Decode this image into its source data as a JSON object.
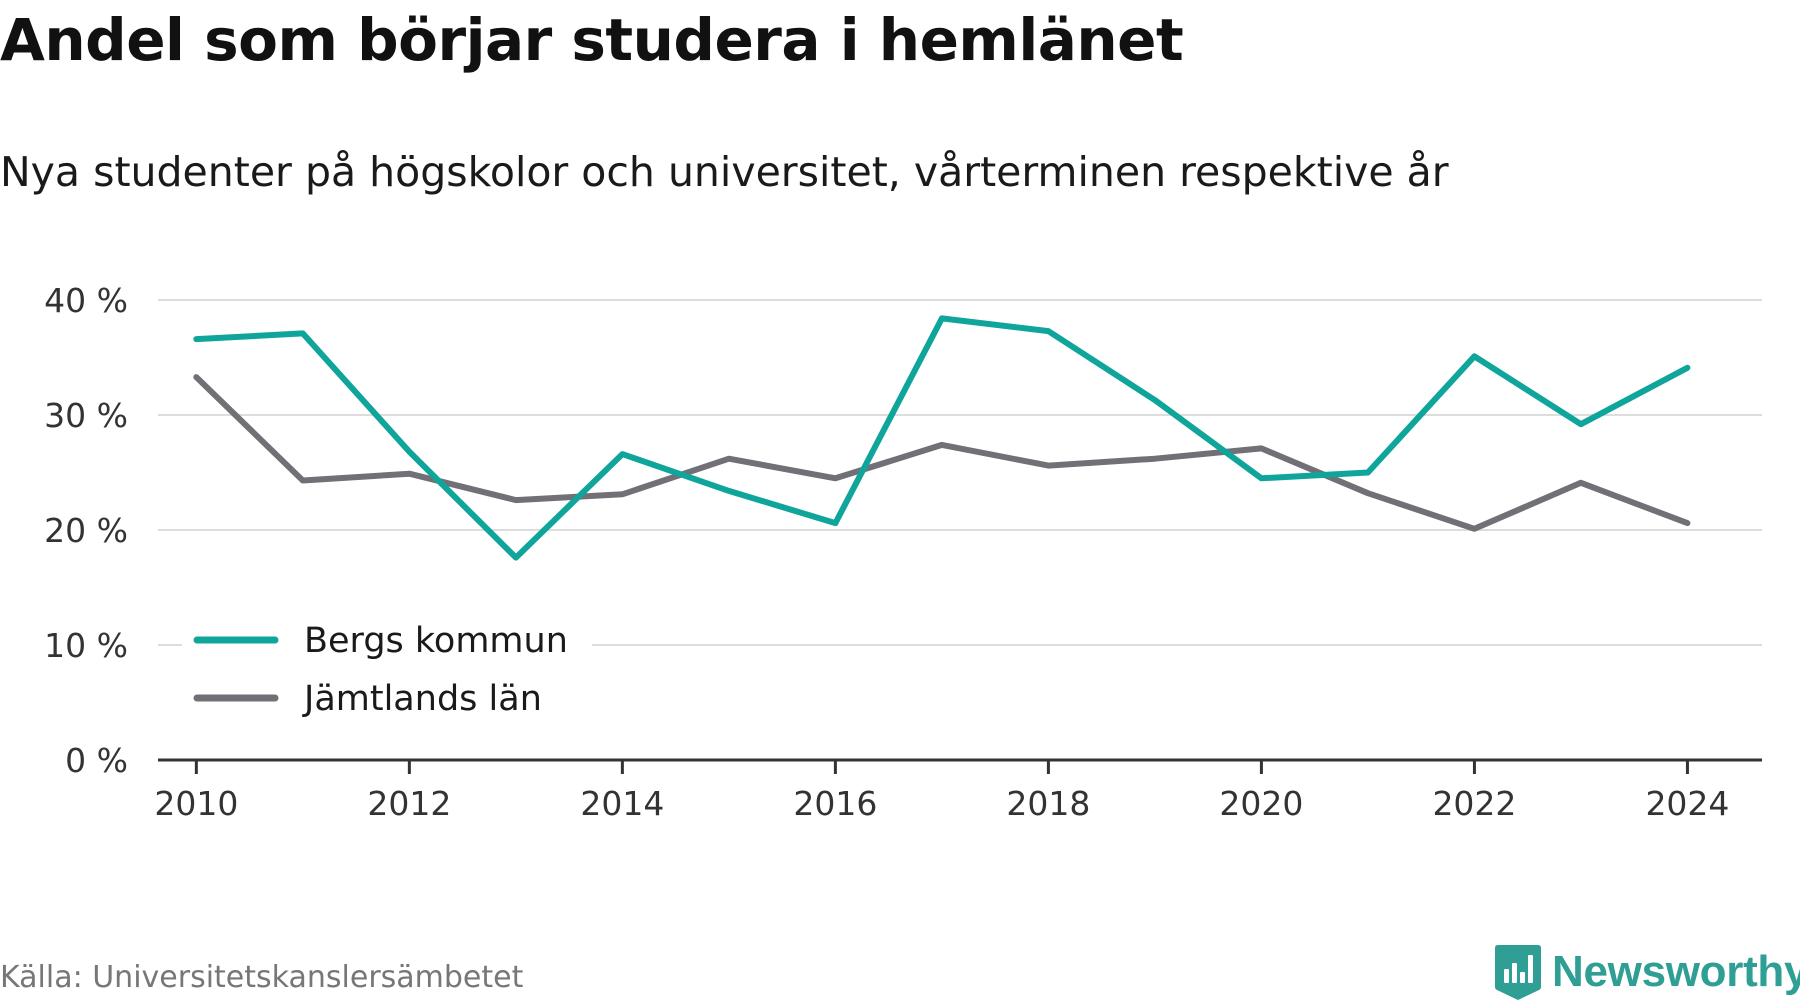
{
  "title": "Andel som börjar studera i hemlänet",
  "subtitle": "Nya studenter på högskolor och universitet, vårterminen respektive år",
  "source": "Källa: Universitetskanslersämbetet",
  "brand": "Newsworthy",
  "colors": {
    "bergs": "#10a59b",
    "jamtland": "#727076",
    "grid": "#dddddd",
    "axis": "#333333",
    "brand": "#2f9e94"
  },
  "chart_data": {
    "type": "line",
    "title": "Andel som börjar studera i hemlänet",
    "subtitle": "Nya studenter på högskolor och universitet, vårterminen respektive år",
    "x": [
      2010,
      2011,
      2012,
      2013,
      2014,
      2015,
      2016,
      2017,
      2018,
      2019,
      2020,
      2021,
      2022,
      2023,
      2024
    ],
    "x_ticks": [
      2010,
      2012,
      2014,
      2016,
      2018,
      2020,
      2022,
      2024
    ],
    "x_tick_labels": [
      "2010",
      "2012",
      "2014",
      "2016",
      "2018",
      "2020",
      "2022",
      "2024"
    ],
    "xlim": [
      2009.64,
      2024.7
    ],
    "ylim": [
      0,
      40
    ],
    "y_ticks": [
      0,
      10,
      20,
      30,
      40
    ],
    "y_tick_labels": [
      "0 %",
      "10 %",
      "20 %",
      "30 %",
      "40 %"
    ],
    "grid": true,
    "legend_position": "bottom-left",
    "series": [
      {
        "name": "Bergs kommun",
        "color": "#10a59b",
        "values": [
          36.6,
          37.1,
          26.8,
          17.6,
          26.6,
          23.4,
          20.6,
          38.4,
          37.3,
          31.3,
          24.5,
          25.0,
          35.1,
          29.2,
          34.1
        ]
      },
      {
        "name": "Jämtlands län",
        "color": "#727076",
        "values": [
          33.3,
          24.3,
          24.9,
          22.6,
          23.1,
          26.2,
          24.5,
          27.4,
          25.6,
          26.2,
          27.1,
          23.2,
          20.1,
          24.1,
          20.6
        ]
      }
    ]
  }
}
